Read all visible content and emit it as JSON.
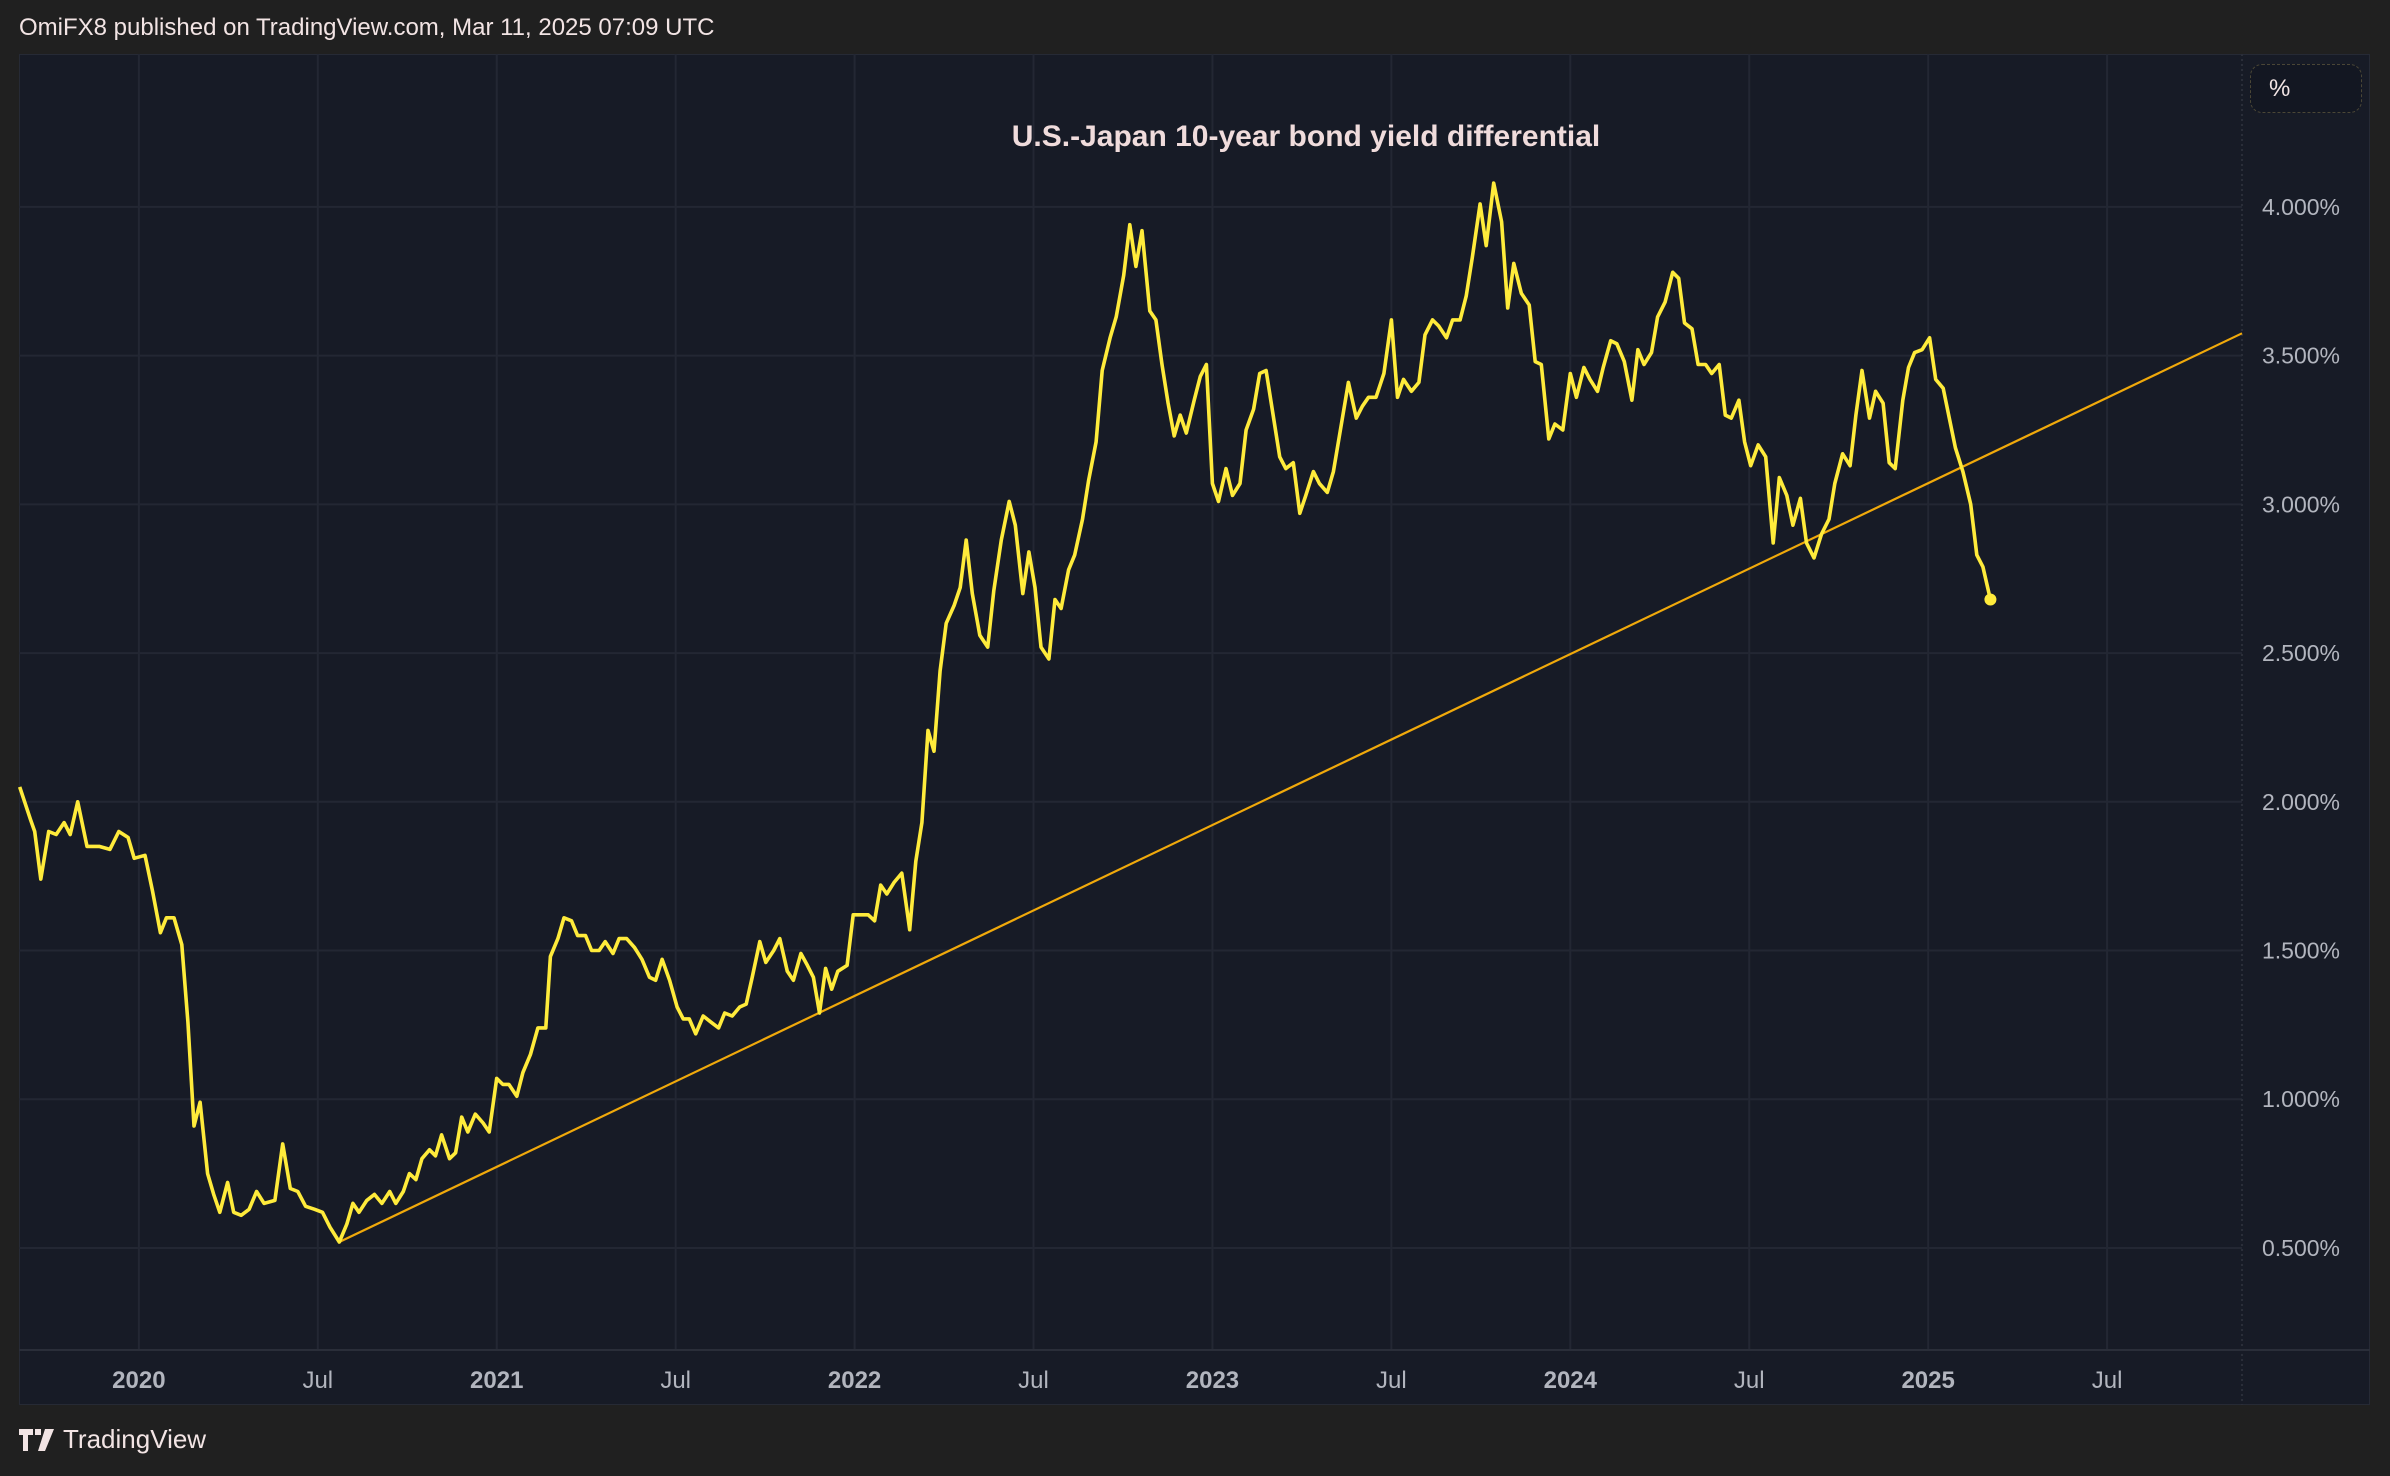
{
  "header": {
    "published": "OmiFX8 published on TradingView.com, Mar 11, 2025 07:09 UTC"
  },
  "footer": {
    "brand": "TradingView",
    "logo_icon": "tradingview-logo-icon"
  },
  "unit_button": {
    "label": "%"
  },
  "colors": {
    "series": "#ffeb3b",
    "trendline": "#f0a90b",
    "background": "#171b26",
    "grid": "#232733",
    "axis_text": "#b2b5be"
  },
  "chart_data": {
    "type": "line",
    "title": "U.S.-Japan 10-year bond yield differential",
    "xlabel": "",
    "ylabel": "",
    "xlim": [
      2019.665,
      2025.877
    ],
    "ylim": [
      0.157,
      4.514
    ],
    "grid": true,
    "x_ticks": [
      {
        "value": 2020,
        "label": "2020",
        "major": true
      },
      {
        "value": 2020.5,
        "label": "Jul",
        "major": false
      },
      {
        "value": 2021,
        "label": "2021",
        "major": true
      },
      {
        "value": 2021.5,
        "label": "Jul",
        "major": false
      },
      {
        "value": 2022,
        "label": "2022",
        "major": true
      },
      {
        "value": 2022.5,
        "label": "Jul",
        "major": false
      },
      {
        "value": 2023,
        "label": "2023",
        "major": true
      },
      {
        "value": 2023.5,
        "label": "Jul",
        "major": false
      },
      {
        "value": 2024,
        "label": "2024",
        "major": true
      },
      {
        "value": 2024.5,
        "label": "Jul",
        "major": false
      },
      {
        "value": 2025,
        "label": "2025",
        "major": true
      },
      {
        "value": 2025.5,
        "label": "Jul",
        "major": false
      }
    ],
    "y_ticks": [
      {
        "value": 0.5,
        "label": "0.500%"
      },
      {
        "value": 1.0,
        "label": "1.000%"
      },
      {
        "value": 1.5,
        "label": "1.500%"
      },
      {
        "value": 2.0,
        "label": "2.000%"
      },
      {
        "value": 2.5,
        "label": "2.500%"
      },
      {
        "value": 3.0,
        "label": "3.000%"
      },
      {
        "value": 3.5,
        "label": "3.500%"
      },
      {
        "value": 4.0,
        "label": "4.000%"
      }
    ],
    "trendline": {
      "x": [
        2020.56,
        2025.877
      ],
      "y": [
        0.52,
        3.575
      ]
    },
    "series": [
      {
        "x": [
          2019.667,
          2019.697,
          2019.709,
          2019.726,
          2019.748,
          2019.769,
          2019.791,
          2019.808,
          2019.829,
          2019.855,
          2019.889,
          2019.919,
          2019.944,
          2019.97,
          2019.987,
          2020.017,
          2020.038,
          2020.06,
          2020.077,
          2020.098,
          2020.12,
          2020.137,
          2020.154,
          2020.171,
          2020.192,
          2020.209,
          2020.226,
          2020.248,
          2020.265,
          2020.286,
          2020.308,
          2020.329,
          2020.35,
          2020.38,
          2020.402,
          2020.423,
          2020.444,
          2020.466,
          2020.491,
          2020.513,
          2020.534,
          2020.56,
          2020.581,
          2020.598,
          2020.615,
          2020.637,
          2020.658,
          2020.679,
          2020.701,
          2020.718,
          2020.739,
          2020.756,
          2020.774,
          2020.791,
          2020.812,
          2020.829,
          2020.846,
          2020.868,
          2020.885,
          2020.902,
          2020.919,
          2020.94,
          2020.962,
          2020.979,
          2021.0,
          2021.017,
          2021.034,
          2021.056,
          2021.073,
          2021.094,
          2021.115,
          2021.137,
          2021.15,
          2021.171,
          2021.188,
          2021.209,
          2021.226,
          2021.248,
          2021.265,
          2021.286,
          2021.303,
          2021.325,
          2021.342,
          2021.363,
          2021.385,
          2021.406,
          2021.427,
          2021.444,
          2021.462,
          2021.483,
          2021.504,
          2021.521,
          2021.538,
          2021.556,
          2021.577,
          2021.598,
          2021.62,
          2021.637,
          2021.658,
          2021.679,
          2021.697,
          2021.714,
          2021.735,
          2021.752,
          2021.774,
          2021.791,
          2021.812,
          2021.829,
          2021.85,
          2021.868,
          2021.885,
          2021.902,
          2021.919,
          2021.936,
          2021.953,
          2021.979,
          2021.996,
          2022.017,
          2022.038,
          2022.056,
          2022.073,
          2022.09,
          2022.111,
          2022.132,
          2022.154,
          2022.171,
          2022.188,
          2022.205,
          2022.222,
          2022.239,
          2022.256,
          2022.278,
          2022.295,
          2022.312,
          2022.329,
          2022.35,
          2022.372,
          2022.389,
          2022.41,
          2022.432,
          2022.449,
          2022.47,
          2022.487,
          2022.504,
          2022.521,
          2022.543,
          2022.56,
          2022.577,
          2022.598,
          2022.615,
          2022.637,
          2022.654,
          2022.675,
          2022.692,
          2022.714,
          2022.731,
          2022.752,
          2022.769,
          2022.786,
          2022.803,
          2022.825,
          2022.842,
          2022.859,
          2022.876,
          2022.893,
          2022.91,
          2022.927,
          2022.949,
          2022.966,
          2022.983,
          2023.0,
          2023.017,
          2023.038,
          2023.056,
          2023.077,
          2023.094,
          2023.115,
          2023.132,
          2023.15,
          2023.167,
          2023.188,
          2023.205,
          2023.226,
          2023.244,
          2023.261,
          2023.282,
          2023.299,
          2023.321,
          2023.338,
          2023.359,
          2023.38,
          2023.402,
          2023.419,
          2023.436,
          2023.457,
          2023.479,
          2023.5,
          2023.517,
          2023.534,
          2023.556,
          2023.577,
          2023.594,
          2023.615,
          2023.632,
          2023.654,
          2023.671,
          2023.692,
          2023.709,
          2023.726,
          2023.748,
          2023.765,
          2023.786,
          2023.808,
          2023.825,
          2023.842,
          2023.863,
          2023.885,
          2023.902,
          2023.919,
          2023.94,
          2023.957,
          2023.979,
          2024.0,
          2024.017,
          2024.038,
          2024.055,
          2024.076,
          2024.092,
          2024.113,
          2024.13,
          2024.151,
          2024.172,
          2024.189,
          2024.206,
          2024.227,
          2024.244,
          2024.265,
          2024.286,
          2024.303,
          2024.319,
          2024.34,
          2024.357,
          2024.378,
          2024.395,
          2024.416,
          2024.433,
          2024.45,
          2024.471,
          2024.487,
          2024.504,
          2024.525,
          2024.546,
          2024.567,
          2024.584,
          2024.605,
          2024.622,
          2024.643,
          2024.66,
          2024.681,
          2024.702,
          2024.723,
          2024.739,
          2024.761,
          2024.782,
          2024.798,
          2024.815,
          2024.836,
          2024.853,
          2024.874,
          2024.891,
          2024.908,
          2024.929,
          2024.945,
          2024.962,
          2024.983,
          2025.004,
          2025.021,
          2025.042,
          2025.059,
          2025.076,
          2025.097,
          2025.119,
          2025.136,
          2025.153,
          2025.174
        ],
        "y": [
          2.05,
          1.94,
          1.9,
          1.74,
          1.9,
          1.89,
          1.93,
          1.89,
          2.0,
          1.85,
          1.85,
          1.84,
          1.9,
          1.88,
          1.81,
          1.82,
          1.7,
          1.56,
          1.61,
          1.61,
          1.52,
          1.26,
          0.91,
          0.99,
          0.75,
          0.68,
          0.62,
          0.72,
          0.62,
          0.61,
          0.63,
          0.69,
          0.65,
          0.66,
          0.85,
          0.7,
          0.69,
          0.64,
          0.63,
          0.62,
          0.57,
          0.52,
          0.58,
          0.65,
          0.62,
          0.66,
          0.68,
          0.65,
          0.69,
          0.65,
          0.69,
          0.75,
          0.73,
          0.8,
          0.83,
          0.81,
          0.88,
          0.8,
          0.82,
          0.94,
          0.89,
          0.95,
          0.92,
          0.89,
          1.07,
          1.05,
          1.05,
          1.01,
          1.09,
          1.15,
          1.24,
          1.24,
          1.48,
          1.54,
          1.61,
          1.6,
          1.55,
          1.55,
          1.5,
          1.5,
          1.53,
          1.49,
          1.54,
          1.54,
          1.51,
          1.47,
          1.41,
          1.4,
          1.47,
          1.4,
          1.31,
          1.27,
          1.27,
          1.22,
          1.28,
          1.26,
          1.24,
          1.29,
          1.28,
          1.31,
          1.32,
          1.41,
          1.53,
          1.46,
          1.5,
          1.54,
          1.43,
          1.4,
          1.49,
          1.45,
          1.41,
          1.29,
          1.44,
          1.37,
          1.43,
          1.45,
          1.62,
          1.62,
          1.62,
          1.6,
          1.72,
          1.69,
          1.73,
          1.76,
          1.57,
          1.8,
          1.93,
          2.24,
          2.17,
          2.44,
          2.6,
          2.66,
          2.72,
          2.88,
          2.7,
          2.56,
          2.52,
          2.71,
          2.88,
          3.01,
          2.93,
          2.7,
          2.84,
          2.72,
          2.52,
          2.48,
          2.68,
          2.65,
          2.78,
          2.83,
          2.95,
          3.08,
          3.21,
          3.45,
          3.56,
          3.63,
          3.77,
          3.94,
          3.8,
          3.92,
          3.65,
          3.62,
          3.47,
          3.34,
          3.23,
          3.3,
          3.24,
          3.35,
          3.43,
          3.47,
          3.07,
          3.01,
          3.12,
          3.03,
          3.07,
          3.25,
          3.32,
          3.44,
          3.45,
          3.32,
          3.16,
          3.12,
          3.14,
          2.97,
          3.03,
          3.11,
          3.07,
          3.04,
          3.11,
          3.26,
          3.41,
          3.29,
          3.33,
          3.36,
          3.36,
          3.44,
          3.62,
          3.36,
          3.42,
          3.38,
          3.41,
          3.57,
          3.62,
          3.6,
          3.56,
          3.62,
          3.62,
          3.7,
          3.83,
          4.01,
          3.87,
          4.08,
          3.95,
          3.66,
          3.81,
          3.71,
          3.67,
          3.48,
          3.47,
          3.22,
          3.27,
          3.25,
          3.44,
          3.36,
          3.46,
          3.42,
          3.38,
          3.46,
          3.55,
          3.54,
          3.48,
          3.35,
          3.52,
          3.47,
          3.51,
          3.63,
          3.68,
          3.78,
          3.76,
          3.61,
          3.59,
          3.47,
          3.47,
          3.44,
          3.47,
          3.3,
          3.29,
          3.35,
          3.21,
          3.13,
          3.2,
          3.16,
          2.87,
          3.09,
          3.03,
          2.93,
          3.02,
          2.87,
          2.82,
          2.9,
          2.95,
          3.07,
          3.17,
          3.13,
          3.3,
          3.45,
          3.29,
          3.38,
          3.34,
          3.14,
          3.12,
          3.35,
          3.46,
          3.51,
          3.52,
          3.56,
          3.42,
          3.39,
          3.29,
          3.19,
          3.11,
          3.0,
          2.83,
          2.79,
          2.68
        ]
      }
    ]
  }
}
